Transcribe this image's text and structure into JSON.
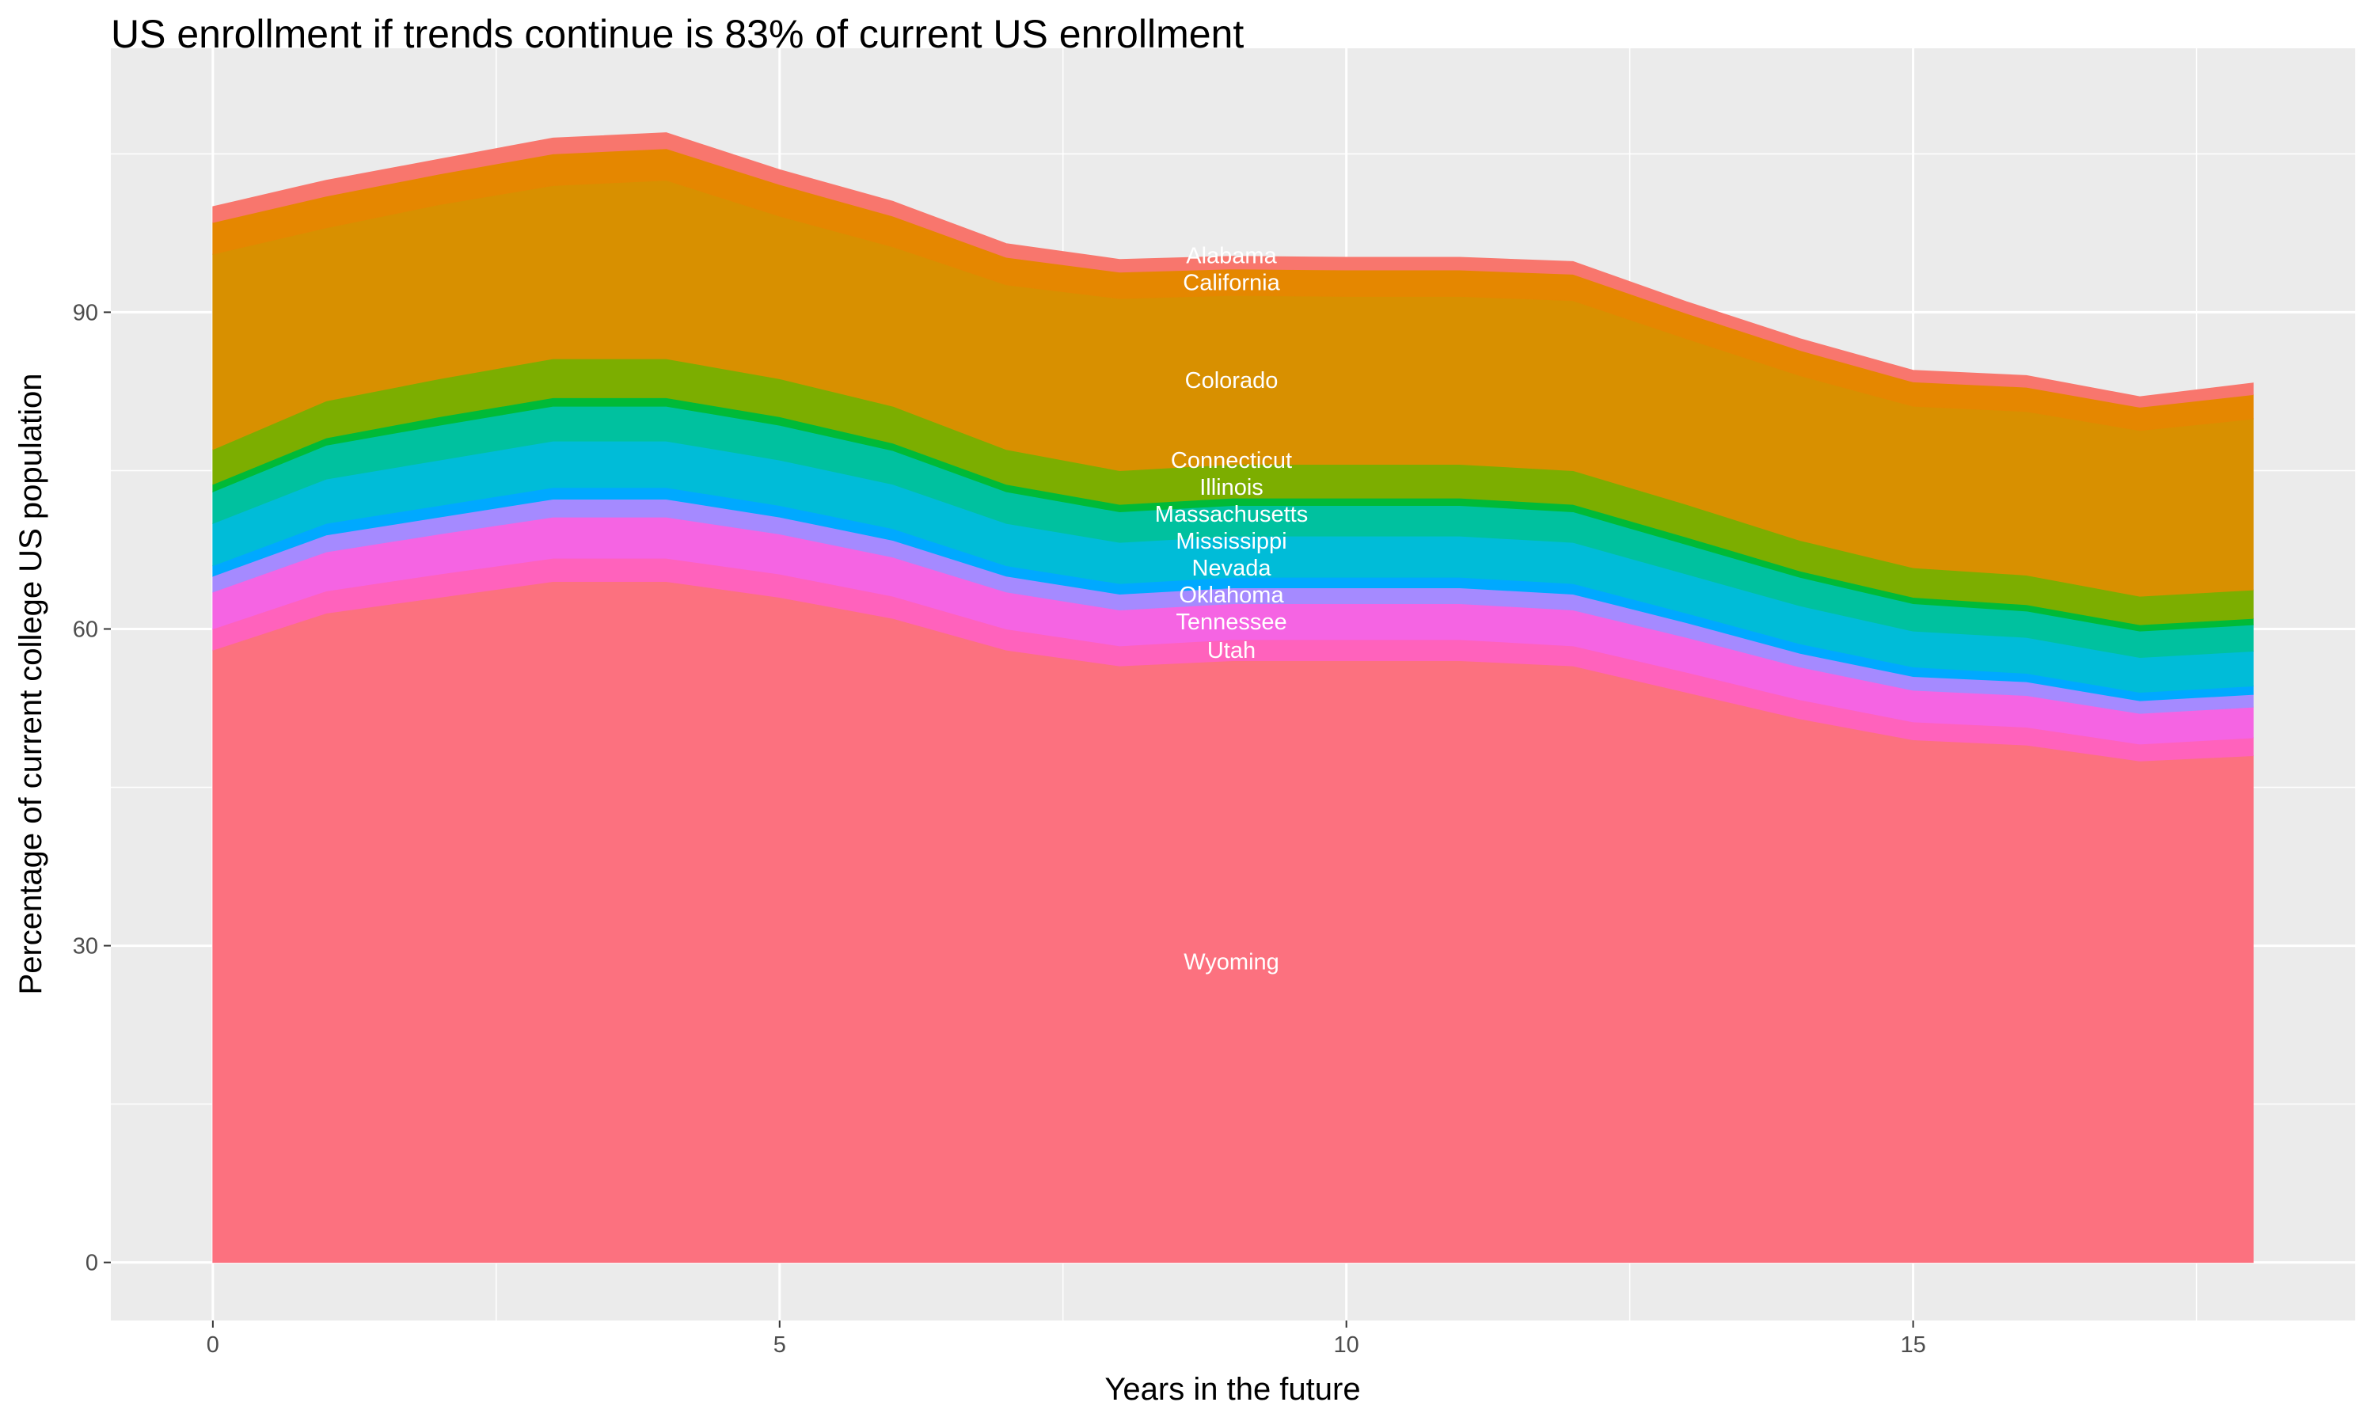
{
  "chart_data": {
    "type": "area",
    "stacked": true,
    "title": "US enrollment if trends continue is 83% of current US enrollment",
    "xlabel": "Years in the future",
    "ylabel": "Percentage of current college US population",
    "xlim": [
      -0.9,
      18.9
    ],
    "ylim": [
      -5.5,
      115
    ],
    "x_ticks": [
      0,
      5,
      10,
      15
    ],
    "y_ticks": [
      0,
      30,
      60,
      90
    ],
    "grid": true,
    "legend": "none",
    "label_x": 9,
    "x": [
      0,
      1,
      2,
      3,
      4,
      5,
      6,
      7,
      8,
      9,
      10,
      11,
      12,
      13,
      14,
      15,
      16,
      17,
      18
    ],
    "series": [
      {
        "name": "Alabama",
        "color": "#F8766D",
        "values": [
          1.5,
          1.5,
          1.4,
          1.5,
          1.5,
          1.4,
          1.4,
          1.3,
          1.2,
          1.2,
          1.2,
          1.2,
          1.2,
          1.1,
          1.1,
          1.1,
          1.1,
          1.0,
          1.1
        ]
      },
      {
        "name": "California",
        "color": "#E58700",
        "values": [
          3,
          3,
          2.9,
          3,
          3,
          3,
          2.9,
          2.6,
          2.5,
          2.5,
          2.5,
          2.5,
          2.5,
          2.4,
          2.4,
          2.3,
          2.3,
          2.2,
          2.3
        ]
      },
      {
        "name": "Colorado",
        "color": "#D89000",
        "values": [
          18.5,
          16.4,
          16.5,
          16.4,
          16.9,
          15.4,
          15.1,
          15.6,
          16.3,
          16.0,
          15.9,
          15.9,
          16.1,
          15.7,
          15.6,
          15.3,
          15.5,
          15.7,
          16.2
        ]
      },
      {
        "name": "Connecticut",
        "color": "#7CAE00",
        "values": [
          3.3,
          3.5,
          3.6,
          3.7,
          3.7,
          3.6,
          3.5,
          3.3,
          3.2,
          3.2,
          3.2,
          3.2,
          3.2,
          3.1,
          2.9,
          2.8,
          2.8,
          2.7,
          2.7
        ]
      },
      {
        "name": "Illinois",
        "color": "#00BA38",
        "values": [
          0.7,
          0.7,
          0.8,
          0.8,
          0.8,
          0.8,
          0.7,
          0.7,
          0.7,
          0.7,
          0.7,
          0.7,
          0.7,
          0.7,
          0.6,
          0.6,
          0.6,
          0.6,
          0.6
        ]
      },
      {
        "name": "Massachusetts",
        "color": "#00C19F",
        "values": [
          3,
          3.2,
          3.3,
          3.3,
          3.3,
          3.3,
          3.2,
          3,
          2.9,
          2.9,
          2.9,
          2.9,
          2.9,
          2.8,
          2.7,
          2.6,
          2.5,
          2.5,
          2.5
        ]
      },
      {
        "name": "Mississippi",
        "color": "#00BCD8",
        "values": [
          4,
          4.2,
          4.3,
          4.4,
          4.4,
          4.3,
          4.2,
          4,
          3.9,
          3.9,
          3.9,
          3.9,
          3.9,
          3.7,
          3.6,
          3.4,
          3.4,
          3.3,
          3.3
        ]
      },
      {
        "name": "Nevada",
        "color": "#00A9FF",
        "values": [
          1,
          1.1,
          1.1,
          1.1,
          1.1,
          1.1,
          1.1,
          1,
          1,
          1,
          1,
          1,
          1,
          0.9,
          0.9,
          0.9,
          0.8,
          0.8,
          0.8
        ]
      },
      {
        "name": "Oklahoma",
        "color": "#A58AFF",
        "values": [
          1.5,
          1.6,
          1.6,
          1.7,
          1.7,
          1.6,
          1.6,
          1.5,
          1.5,
          1.5,
          1.5,
          1.5,
          1.5,
          1.4,
          1.3,
          1.3,
          1.3,
          1.2,
          1.2
        ]
      },
      {
        "name": "Tennessee",
        "color": "#F564E3",
        "values": [
          3.5,
          3.7,
          3.8,
          3.9,
          3.9,
          3.8,
          3.7,
          3.5,
          3.4,
          3.4,
          3.4,
          3.4,
          3.4,
          3.3,
          3.1,
          3,
          3,
          2.9,
          2.9
        ]
      },
      {
        "name": "Utah",
        "color": "#FF62BC",
        "values": [
          2,
          2.1,
          2.2,
          2.2,
          2.2,
          2.2,
          2.1,
          2,
          1.9,
          2,
          2,
          2,
          1.9,
          1.9,
          1.8,
          1.7,
          1.7,
          1.6,
          1.7
        ]
      },
      {
        "name": "Wyoming",
        "color": "#FC717F",
        "values": [
          58,
          61.5,
          63,
          64.5,
          64.5,
          63,
          61,
          58,
          56.5,
          57,
          57,
          57,
          56.5,
          54,
          51.5,
          49.5,
          49,
          47.5,
          48
        ]
      }
    ]
  },
  "colors": {
    "panel_bg": "#EBEBEB",
    "grid": "#FFFFFF"
  }
}
